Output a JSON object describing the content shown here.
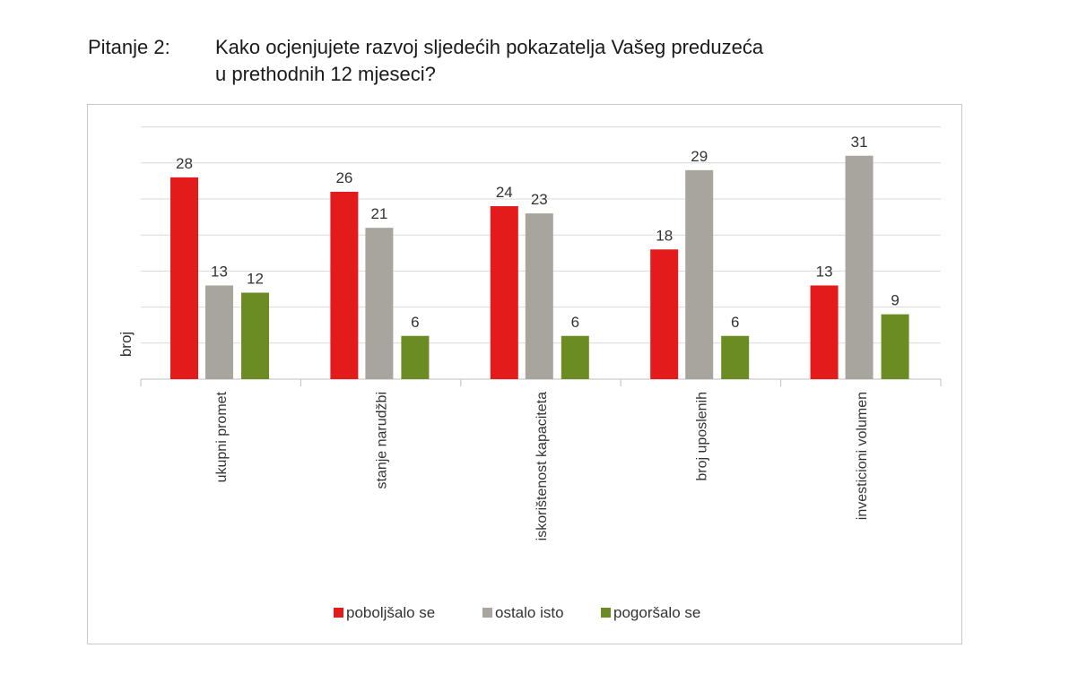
{
  "question": {
    "label": "Pitanje 2:",
    "line1": "Kako ocjenjujete razvoj sljedećih pokazatelja Vašeg preduzeća",
    "line2": "u prethodnih 12 mjeseci?"
  },
  "chart_data": {
    "type": "bar",
    "title": "",
    "xlabel": "",
    "ylabel": "broj",
    "ylim": [
      0,
      35
    ],
    "grid": true,
    "legend_position": "bottom",
    "categories": [
      "ukupni promet",
      "stanje narudžbi",
      "iskorištenost kapaciteta",
      "broj uposlenih",
      "investicioni volumen"
    ],
    "series": [
      {
        "name": "poboljšalo se",
        "color": "#e31b1b",
        "values": [
          28,
          26,
          24,
          18,
          13
        ]
      },
      {
        "name": "ostalo isto",
        "color": "#a8a59e",
        "values": [
          13,
          21,
          23,
          29,
          31
        ]
      },
      {
        "name": "pogoršalo se",
        "color": "#6b8c23",
        "values": [
          12,
          6,
          6,
          6,
          9
        ]
      }
    ]
  }
}
